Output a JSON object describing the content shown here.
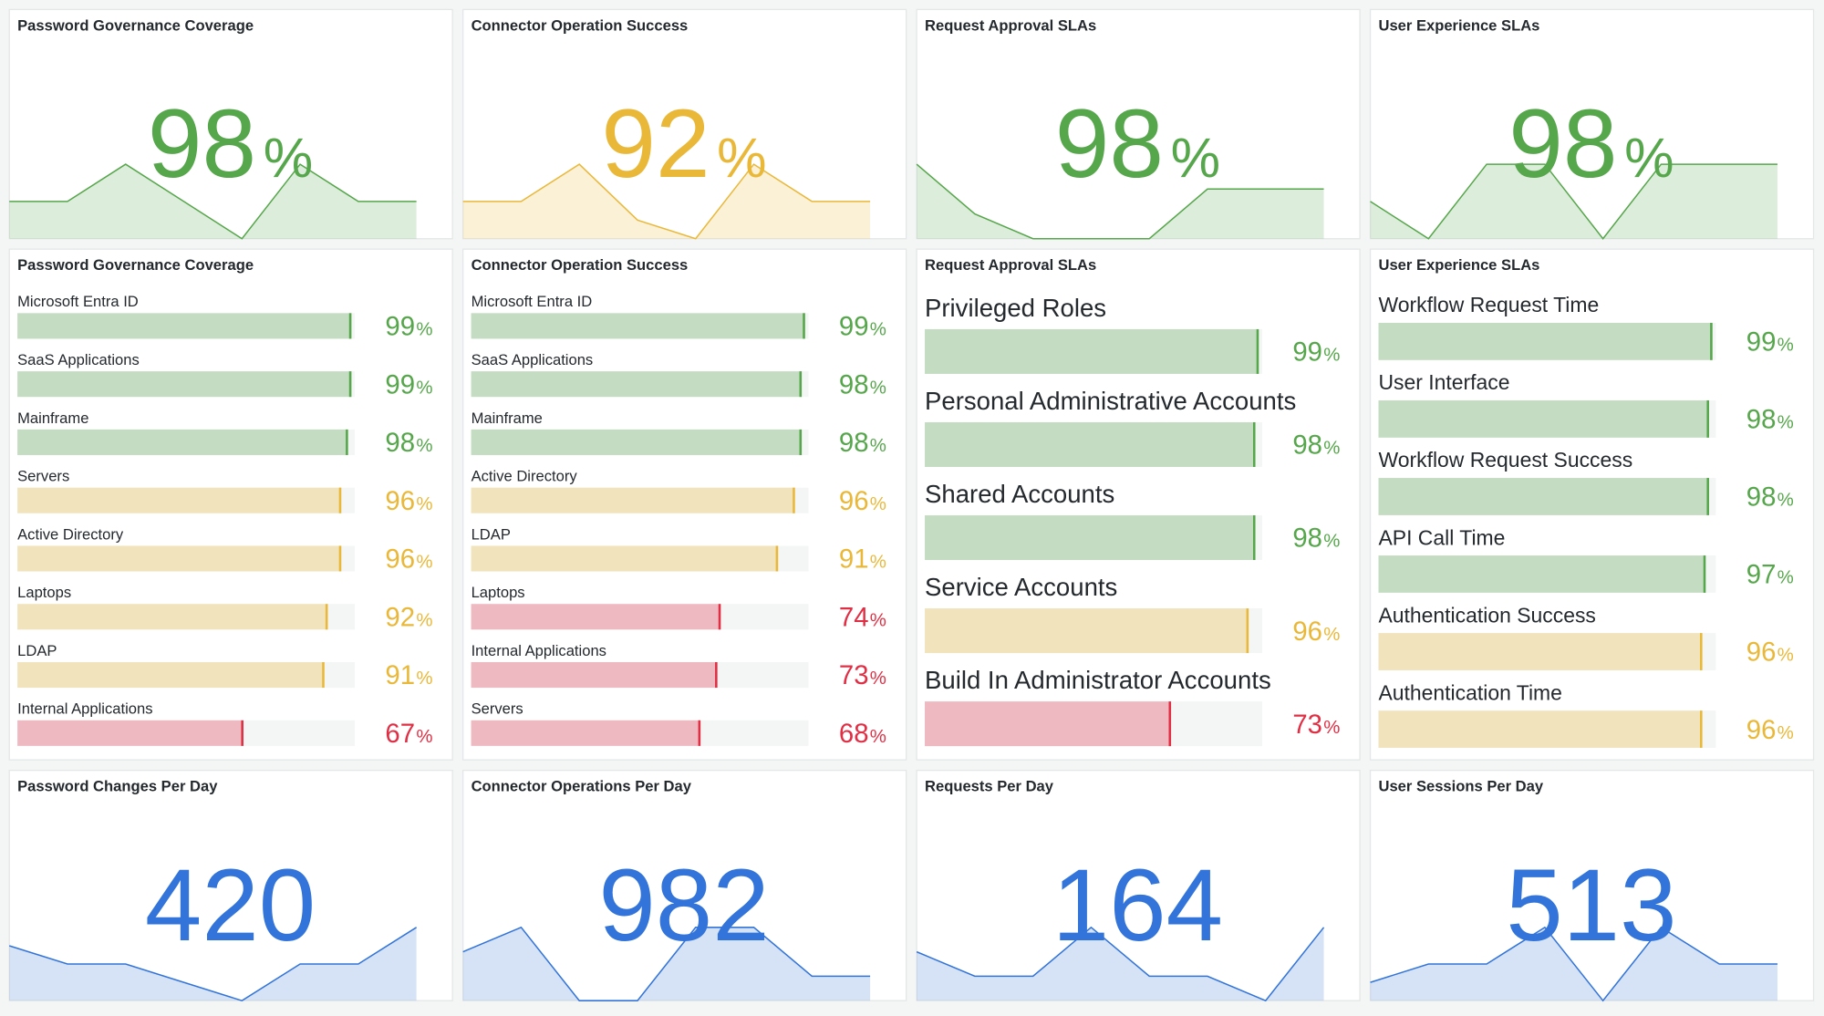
{
  "stat_panels": [
    {
      "title": "Password Governance Coverage",
      "value": 98,
      "unit": "%",
      "color": "#56a64b",
      "sparkline": [
        2,
        2,
        4,
        2,
        0,
        4,
        2,
        2
      ]
    },
    {
      "title": "Connector Operation Success",
      "value": 92,
      "unit": "%",
      "color": "#eab839",
      "sparkline": [
        2,
        2,
        4,
        1,
        0,
        4,
        2,
        2
      ]
    },
    {
      "title": "Request Approval SLAs",
      "value": 98,
      "unit": "%",
      "color": "#56a64b",
      "sparkline": [
        3,
        1,
        0,
        0,
        0,
        2,
        2,
        2
      ]
    },
    {
      "title": "User Experience SLAs",
      "value": 98,
      "unit": "%",
      "color": "#56a64b",
      "sparkline": [
        1,
        0,
        2,
        2,
        0,
        2,
        2,
        2
      ]
    }
  ],
  "gauge_panels": [
    {
      "title": "Password Governance Coverage",
      "unit": "%",
      "items": [
        {
          "label": "Microsoft Entra ID",
          "value": 99,
          "color": "#56a64b"
        },
        {
          "label": "SaaS Applications",
          "value": 99,
          "color": "#56a64b"
        },
        {
          "label": "Mainframe",
          "value": 98,
          "color": "#56a64b"
        },
        {
          "label": "Servers",
          "value": 96,
          "color": "#eab839"
        },
        {
          "label": "Active Directory",
          "value": 96,
          "color": "#eab839"
        },
        {
          "label": "Laptops",
          "value": 92,
          "color": "#eab839"
        },
        {
          "label": "LDAP",
          "value": 91,
          "color": "#eab839"
        },
        {
          "label": "Internal Applications",
          "value": 67,
          "color": "#e02f44"
        }
      ]
    },
    {
      "title": "Connector Operation Success",
      "unit": "%",
      "items": [
        {
          "label": "Microsoft Entra ID",
          "value": 99,
          "color": "#56a64b"
        },
        {
          "label": "SaaS Applications",
          "value": 98,
          "color": "#56a64b"
        },
        {
          "label": "Mainframe",
          "value": 98,
          "color": "#56a64b"
        },
        {
          "label": "Active Directory",
          "value": 96,
          "color": "#eab839"
        },
        {
          "label": "LDAP",
          "value": 91,
          "color": "#eab839"
        },
        {
          "label": "Laptops",
          "value": 74,
          "color": "#e02f44"
        },
        {
          "label": "Internal Applications",
          "value": 73,
          "color": "#e02f44"
        },
        {
          "label": "Servers",
          "value": 68,
          "color": "#e02f44"
        }
      ]
    },
    {
      "title": "Request Approval SLAs",
      "unit": "%",
      "items": [
        {
          "label": "Privileged Roles",
          "value": 99,
          "color": "#56a64b"
        },
        {
          "label": "Personal Administrative Accounts",
          "value": 98,
          "color": "#56a64b"
        },
        {
          "label": "Shared Accounts",
          "value": 98,
          "color": "#56a64b"
        },
        {
          "label": "Service Accounts",
          "value": 96,
          "color": "#eab839"
        },
        {
          "label": "Build In Administrator Accounts",
          "value": 73,
          "color": "#e02f44"
        }
      ]
    },
    {
      "title": "User Experience SLAs",
      "unit": "%",
      "items": [
        {
          "label": "Workflow Request Time",
          "value": 99,
          "color": "#56a64b"
        },
        {
          "label": "User Interface",
          "value": 98,
          "color": "#56a64b"
        },
        {
          "label": "Workflow Request Success",
          "value": 98,
          "color": "#56a64b"
        },
        {
          "label": "API Call Time",
          "value": 97,
          "color": "#56a64b"
        },
        {
          "label": "Authentication Success",
          "value": 96,
          "color": "#eab839"
        },
        {
          "label": "Authentication Time",
          "value": 96,
          "color": "#eab839"
        }
      ]
    }
  ],
  "count_panels": [
    {
      "title": "Password Changes Per Day",
      "value": 420,
      "color": "#3274d9",
      "sparkline": [
        3,
        2,
        2,
        1,
        0,
        2,
        2,
        4
      ]
    },
    {
      "title": "Connector Operations Per Day",
      "value": 982,
      "color": "#3274d9",
      "sparkline": [
        2,
        3,
        0,
        0,
        3,
        3,
        1,
        1
      ]
    },
    {
      "title": "Requests Per Day",
      "value": 164,
      "color": "#3274d9",
      "sparkline": [
        2,
        1,
        1,
        3,
        1,
        1,
        0,
        3
      ]
    },
    {
      "title": "User Sessions Per Day",
      "value": 513,
      "color": "#3274d9",
      "sparkline": [
        1,
        2,
        2,
        4,
        0,
        4,
        2,
        2
      ]
    }
  ]
}
